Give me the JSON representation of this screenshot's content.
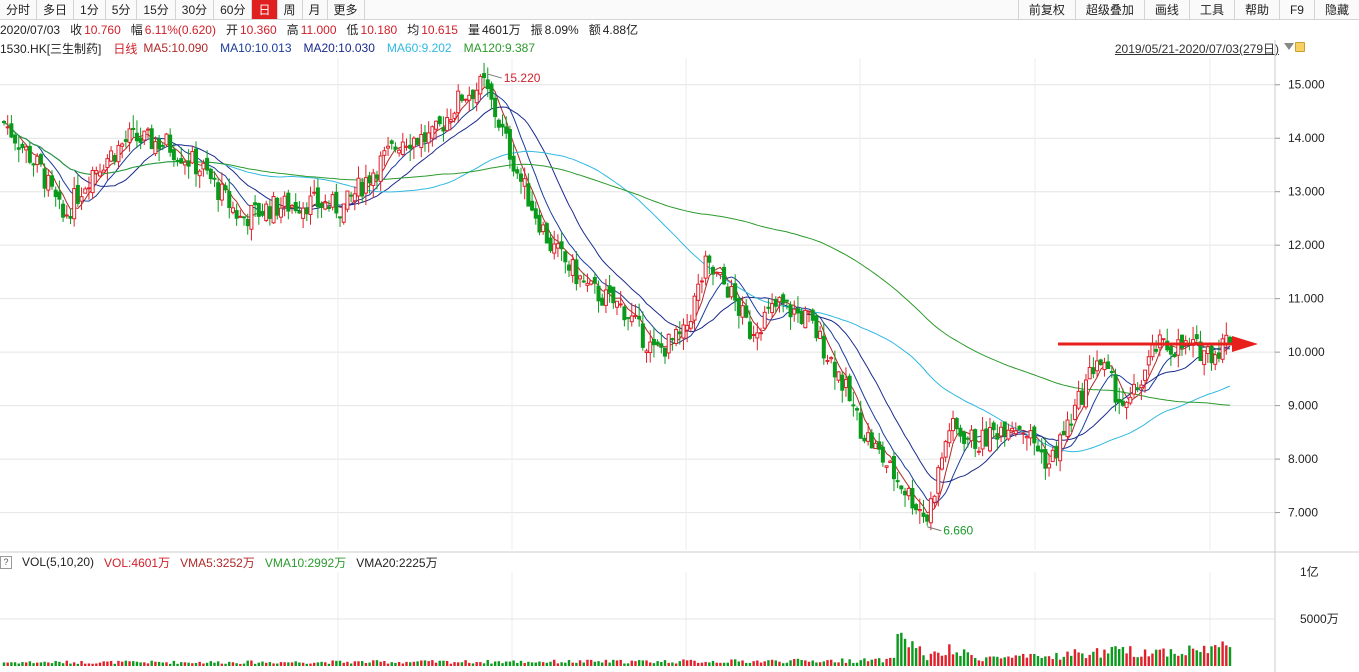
{
  "toolbar": {
    "left_tabs": [
      "分时",
      "多日",
      "1分",
      "5分",
      "15分",
      "30分",
      "60分",
      "日",
      "周",
      "月",
      "更多"
    ],
    "active_tab": "日",
    "right_tabs": [
      "前复权",
      "超级叠加",
      "画线",
      "工具",
      "帮助",
      "F9",
      "隐藏"
    ]
  },
  "quote": {
    "date": "2020/07/03",
    "close_label": "收",
    "close": "10.760",
    "change_label": "幅",
    "change": "6.11%(0.620)",
    "open_label": "开",
    "open": "10.360",
    "high_label": "高",
    "high": "11.000",
    "low_label": "低",
    "low": "10.180",
    "avg_label": "均",
    "avg": "10.615",
    "volume_label": "量",
    "volume": "4601万",
    "amplitude_label": "振",
    "amplitude": "8.09%",
    "amount_label": "额",
    "amount": "4.88亿"
  },
  "info": {
    "code": "1530.HK",
    "name": "[三生制药]",
    "period": "日线",
    "ma5": "MA5:10.090",
    "ma10": "MA10:10.013",
    "ma20": "MA20:10.030",
    "ma60": "MA60:9.202",
    "ma120": "MA120:9.387",
    "range": "2019/05/21-2020/07/03(279日)"
  },
  "volume_info": {
    "question": "?",
    "label": "VOL(5,10,20)",
    "vol": "VOL:4601万",
    "vma5": "VMA5:3252万",
    "vma10": "VMA10:2992万",
    "vma20": "VMA20:2225万"
  },
  "colors": {
    "up": "#e0202a",
    "down": "#0a9a1c",
    "ma5": "#b02828",
    "ma10": "#1a3c9c",
    "ma20": "#1a2a8c",
    "ma60": "#30b8e0",
    "ma120": "#2c9a2c",
    "arrow": "#e8201c"
  },
  "chart_data": {
    "type": "candlestick",
    "y_axis": {
      "ticks": [
        "15.000",
        "14.000",
        "13.000",
        "12.000",
        "11.000",
        "10.000",
        "9.000",
        "8.000",
        "7.000"
      ],
      "range": [
        6.3,
        15.5
      ]
    },
    "volume_axis": {
      "ticks": [
        "1亿",
        "5000万"
      ],
      "range": [
        0,
        10000
      ]
    },
    "annotations": {
      "high": "15.220",
      "low": "6.660"
    },
    "grid": true,
    "price_keyframes": [
      [
        0,
        14.3
      ],
      [
        10,
        13.4
      ],
      [
        16,
        12.5
      ],
      [
        24,
        13.4
      ],
      [
        34,
        14.0
      ],
      [
        44,
        13.9
      ],
      [
        54,
        13.4
      ],
      [
        64,
        12.5
      ],
      [
        72,
        12.7
      ],
      [
        82,
        12.8
      ],
      [
        92,
        12.7
      ],
      [
        100,
        13.4
      ],
      [
        108,
        14.0
      ],
      [
        116,
        14.0
      ],
      [
        124,
        14.8
      ],
      [
        130,
        15.0
      ],
      [
        134,
        14.3
      ],
      [
        140,
        13.2
      ],
      [
        148,
        12.0
      ],
      [
        158,
        11.2
      ],
      [
        168,
        10.8
      ],
      [
        176,
        10.0
      ],
      [
        184,
        10.3
      ],
      [
        190,
        11.6
      ],
      [
        196,
        11.2
      ],
      [
        202,
        10.4
      ],
      [
        210,
        10.9
      ],
      [
        218,
        10.6
      ],
      [
        226,
        9.6
      ],
      [
        232,
        8.6
      ],
      [
        240,
        7.8
      ],
      [
        250,
        6.9
      ],
      [
        256,
        8.6
      ],
      [
        264,
        8.3
      ],
      [
        272,
        8.7
      ],
      [
        276,
        8.6
      ],
      [
        283,
        7.9
      ],
      [
        290,
        8.9
      ],
      [
        296,
        9.9
      ],
      [
        304,
        8.9
      ],
      [
        312,
        10.1
      ],
      [
        320,
        10.1
      ],
      [
        328,
        10.0
      ],
      [
        332,
        10.3
      ]
    ],
    "volume_keyframes": [
      [
        0,
        400
      ],
      [
        60,
        400
      ],
      [
        130,
        450
      ],
      [
        200,
        500
      ],
      [
        240,
        600
      ],
      [
        243,
        3500
      ],
      [
        250,
        900
      ],
      [
        256,
        1600
      ],
      [
        264,
        900
      ],
      [
        280,
        900
      ],
      [
        290,
        1300
      ],
      [
        300,
        1500
      ],
      [
        320,
        1600
      ],
      [
        332,
        2100
      ]
    ]
  }
}
